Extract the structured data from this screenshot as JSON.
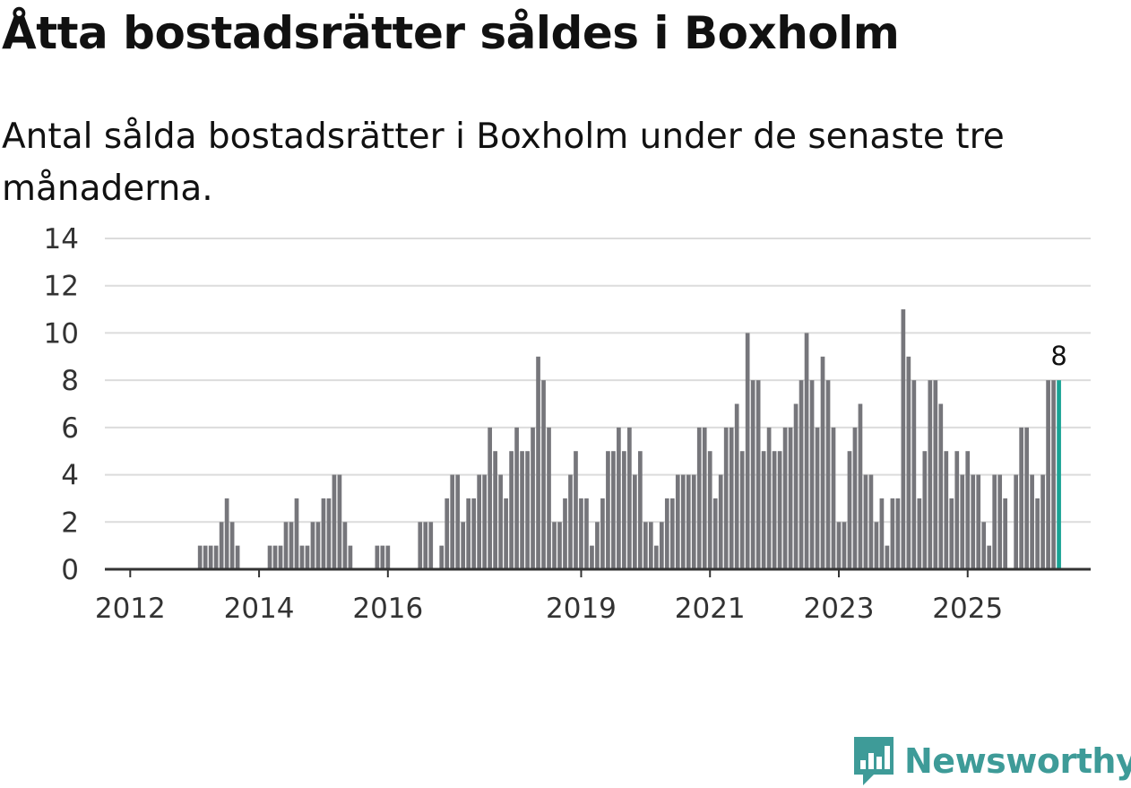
{
  "title": "Åtta bostadsrätter såldes i Boxholm",
  "subtitle": "Antal sålda bostadsrätter i Boxholm under de senaste tre månaderna.",
  "brand": {
    "name": "Newsworthy",
    "color": "#3e9b98"
  },
  "colors": {
    "bar": "#76767b",
    "highlight": "#18a394",
    "grid": "#dcdcdc",
    "axis": "#333333"
  },
  "chart_data": {
    "type": "bar",
    "title": "",
    "xlabel": "",
    "ylabel": "",
    "ylim": [
      0,
      14
    ],
    "yticks": [
      0,
      2,
      4,
      6,
      8,
      10,
      12,
      14
    ],
    "grid": true,
    "x_start": "2011-10",
    "x_ticks": [
      {
        "label": "2012",
        "index": 4
      },
      {
        "label": "2014",
        "index": 28
      },
      {
        "label": "2016",
        "index": 52
      },
      {
        "label": "2019",
        "index": 88
      },
      {
        "label": "2021",
        "index": 112
      },
      {
        "label": "2023",
        "index": 136
      },
      {
        "label": "2025",
        "index": 160
      }
    ],
    "highlight_label": "8",
    "values": [
      0,
      0,
      0,
      0,
      0,
      0,
      0,
      0,
      0,
      0,
      0,
      0,
      0,
      0,
      0,
      0,
      0,
      1,
      1,
      1,
      1,
      2,
      3,
      2,
      1,
      0,
      0,
      0,
      0,
      0,
      1,
      1,
      1,
      2,
      2,
      3,
      1,
      1,
      2,
      2,
      3,
      3,
      4,
      4,
      2,
      1,
      0,
      0,
      0,
      0,
      1,
      1,
      1,
      0,
      0,
      0,
      0,
      0,
      2,
      2,
      2,
      0,
      1,
      3,
      4,
      4,
      2,
      3,
      3,
      4,
      4,
      6,
      5,
      4,
      3,
      5,
      6,
      5,
      5,
      6,
      9,
      8,
      6,
      2,
      2,
      3,
      4,
      5,
      3,
      3,
      1,
      2,
      3,
      5,
      5,
      6,
      5,
      6,
      4,
      5,
      2,
      2,
      1,
      2,
      3,
      3,
      4,
      4,
      4,
      4,
      6,
      6,
      5,
      3,
      4,
      6,
      6,
      7,
      5,
      10,
      8,
      8,
      5,
      6,
      5,
      5,
      6,
      6,
      7,
      8,
      10,
      8,
      6,
      9,
      8,
      6,
      2,
      2,
      5,
      6,
      7,
      4,
      4,
      2,
      3,
      1,
      3,
      3,
      11,
      9,
      8,
      3,
      5,
      8,
      8,
      7,
      5,
      3,
      5,
      4,
      5,
      4,
      4,
      2,
      1,
      4,
      4,
      3,
      0,
      4,
      6,
      6,
      4,
      3,
      4,
      8,
      8,
      8
    ]
  }
}
